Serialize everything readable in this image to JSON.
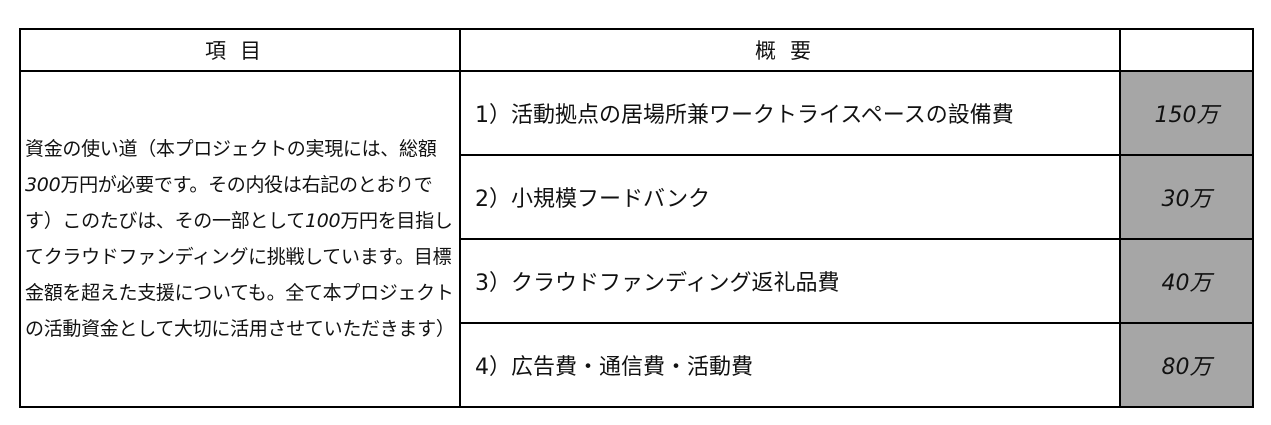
{
  "header": {
    "item": "項目",
    "summary": "概要",
    "amount": ""
  },
  "description": {
    "parts": [
      "資金の使い道（本プロジェクトの実現には、総額",
      "300",
      "万円が必要です。その内役は右記のとおりです）このたびは、その一部として",
      "100",
      "万円を目指してクラウドファンディングに挑戦しています。目標金額を超えた支援についても。全て本プロジェクトの活動資金として大切に活用させていただきます）"
    ]
  },
  "rows": [
    {
      "label": "1）活動拠点の居場所兼ワークトライスペースの設備費",
      "amount": "150万"
    },
    {
      "label": "2）小規模フードバンク",
      "amount": "30万"
    },
    {
      "label": "3）クラウドファンディング返礼品費",
      "amount": "40万"
    },
    {
      "label": "4）広告費・通信費・活動費",
      "amount": "80万"
    }
  ],
  "colors": {
    "amount_cell_bg": "#a6a6a6",
    "border": "#000000"
  }
}
